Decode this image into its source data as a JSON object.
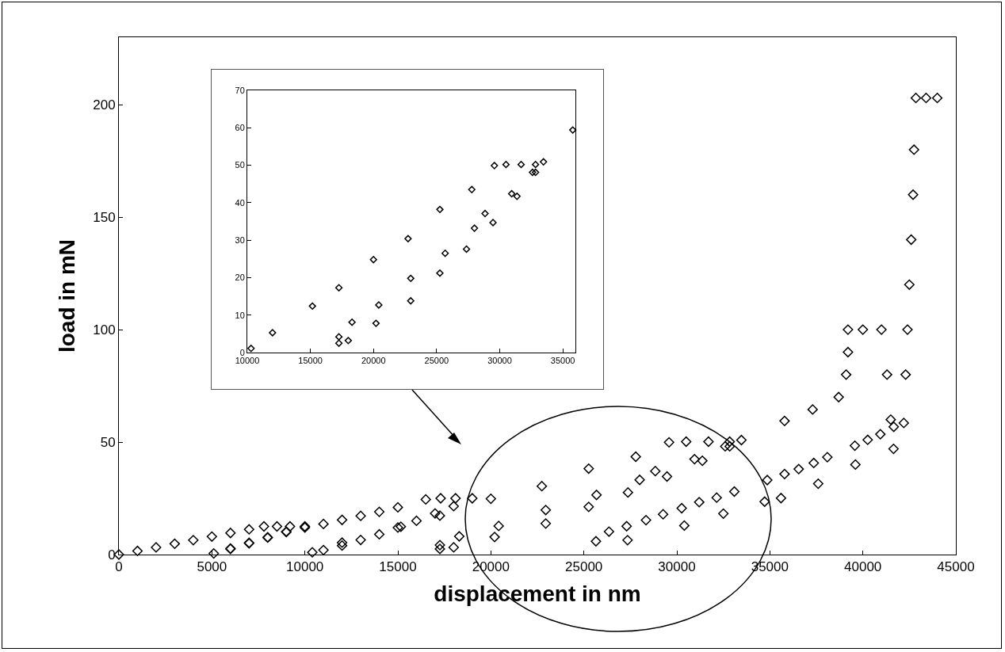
{
  "chart_data": [
    {
      "type": "scatter",
      "xlabel": "displacement in nm",
      "ylabel": "load in mN",
      "color": "#000000",
      "marker": "diamond",
      "x": [
        0,
        1000,
        2000,
        3000,
        4000,
        5000,
        6000,
        7000,
        7800,
        8500,
        9200,
        10000,
        9000,
        8000,
        7000,
        6000,
        5100,
        6000,
        7000,
        8000,
        9000,
        10000,
        11000,
        12000,
        13000,
        14000,
        15000,
        16500,
        17300,
        18100,
        19000,
        18000,
        17000,
        16000,
        15000,
        14000,
        13000,
        12000,
        11000,
        10400,
        12000,
        15160,
        17260,
        20000,
        22740,
        25260,
        27790,
        29580,
        30500,
        31700,
        32840,
        32600,
        30950,
        28840,
        28000,
        25680,
        22950,
        20420,
        18300,
        17260,
        17260,
        18000,
        20200,
        22950,
        25260,
        27370,
        29470,
        31370,
        32840,
        33470,
        35790,
        37300,
        38700,
        39100,
        39200,
        39200,
        40000,
        41000,
        41300,
        41500,
        41650,
        39600,
        37600,
        35600,
        34720,
        32500,
        30400,
        27350,
        25650,
        26350,
        27300,
        28340,
        29260,
        30260,
        31200,
        32140,
        33090,
        34860,
        35790,
        36550,
        37360,
        38090,
        39570,
        40260,
        40940,
        41660,
        42200,
        42300,
        42400,
        42500,
        42600,
        42700,
        42750,
        42850,
        43400,
        44000
      ],
      "values": [
        0,
        1.6,
        3.2,
        4.8,
        6.4,
        8,
        9.6,
        11.2,
        12.5,
        12.5,
        12.5,
        12.5,
        10,
        7.5,
        5,
        2.5,
        0.5,
        2.7,
        5.2,
        7.7,
        10.2,
        12,
        13.6,
        15.4,
        17.2,
        19,
        21,
        24.5,
        25,
        25,
        25,
        21.5,
        18.3,
        15,
        12,
        9,
        6.5,
        4,
        2,
        1,
        5.3,
        12.4,
        17.3,
        24.8,
        30.4,
        38.2,
        43.5,
        49.9,
        50.2,
        50.2,
        50.2,
        48.1,
        42.4,
        37.1,
        33.2,
        26.5,
        19.8,
        12.7,
        8.1,
        4.2,
        2.5,
        3.2,
        7.8,
        13.8,
        21.2,
        27.6,
        34.7,
        41.7,
        48.1,
        50.9,
        59.4,
        64.5,
        70,
        80,
        90,
        100,
        100,
        100,
        80,
        60,
        47,
        40,
        31.5,
        25.1,
        23.5,
        18.2,
        12.9,
        6.4,
        5.9,
        10.2,
        12.6,
        15.3,
        17.9,
        20.6,
        23.3,
        25.3,
        28,
        33.1,
        35.8,
        38,
        40.7,
        43.3,
        48.4,
        51,
        53.5,
        56.8,
        58.5,
        80,
        100,
        120,
        140,
        160,
        180,
        203,
        203,
        203
      ],
      "xlim": [
        0,
        45000
      ],
      "ylim": [
        0,
        230
      ],
      "xticks": [
        0,
        5000,
        10000,
        15000,
        20000,
        25000,
        30000,
        35000,
        40000,
        45000
      ],
      "yticks": [
        0,
        50,
        100,
        150,
        200
      ]
    },
    {
      "type": "scatter",
      "color": "#000000",
      "marker": "diamond",
      "x": [
        10300,
        12000,
        15160,
        17260,
        20000,
        22740,
        25260,
        27790,
        29580,
        30500,
        31700,
        32840,
        32600,
        30950,
        28840,
        28000,
        25680,
        22950,
        20420,
        18300,
        17260,
        17260,
        18000,
        20200,
        22950,
        25260,
        27370,
        29470,
        31370,
        32840,
        33470,
        35790
      ],
      "values": [
        1.1,
        5.3,
        12.4,
        17.3,
        24.8,
        30.4,
        38.2,
        43.5,
        49.9,
        50.2,
        50.2,
        50.2,
        48.1,
        42.4,
        37.1,
        33.2,
        26.5,
        19.8,
        12.7,
        8.1,
        4.2,
        2.5,
        3.2,
        7.8,
        13.8,
        21.2,
        27.6,
        34.7,
        41.7,
        48.1,
        50.9,
        59.4
      ],
      "xlim": [
        10000,
        36000
      ],
      "ylim": [
        0,
        70
      ],
      "xticks": [
        10000,
        15000,
        20000,
        25000,
        30000,
        35000
      ],
      "yticks": [
        0,
        10,
        20,
        30,
        40,
        50,
        60,
        70
      ]
    }
  ]
}
